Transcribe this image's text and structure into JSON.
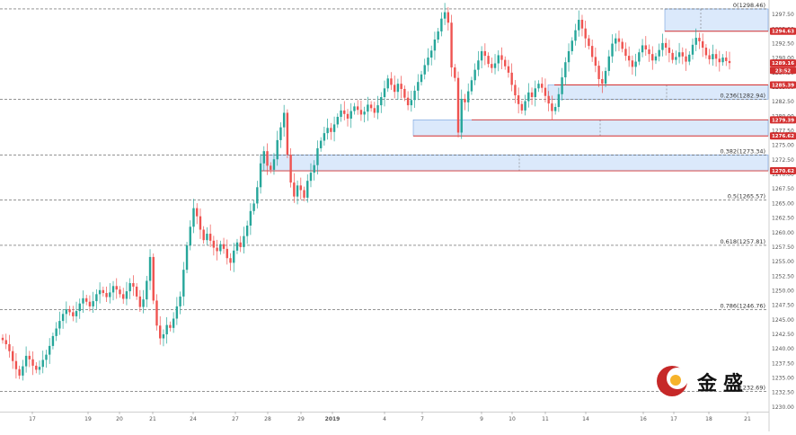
{
  "chart_data": {
    "type": "candlestick",
    "symbol": "XAUUSD",
    "x_ticks": [
      "17",
      "19",
      "20",
      "21",
      "24",
      "27",
      "28",
      "29",
      "2019",
      "4",
      "7",
      "9",
      "10",
      "11",
      "14",
      "16",
      "17",
      "18",
      "21"
    ],
    "y_ticks": [
      "1297.50",
      "1295.00",
      "1292.50",
      "1290.00",
      "1287.50",
      "1285.00",
      "1282.50",
      "1280.00",
      "1277.50",
      "1275.00",
      "1272.50",
      "1270.00",
      "1267.50",
      "1265.00",
      "1262.50",
      "1260.00",
      "1257.50",
      "1255.00",
      "1252.50",
      "1250.00",
      "1247.50",
      "1245.00",
      "1242.50",
      "1240.00",
      "1237.50",
      "1235.00",
      "1232.50",
      "1230.00"
    ],
    "ylim": [
      1229.2,
      1300.0
    ],
    "fib_levels": [
      {
        "ratio": 0,
        "price": 1298.46,
        "label": "0(1298.46)"
      },
      {
        "ratio": 0.236,
        "price": 1282.94,
        "label": "0.236(1282.94)"
      },
      {
        "ratio": 0.382,
        "price": 1273.34,
        "label": "0.382(1273.34)"
      },
      {
        "ratio": 0.5,
        "price": 1265.57,
        "label": "0.5(1265.57)"
      },
      {
        "ratio": 0.618,
        "price": 1257.81,
        "label": "0.618(1257.81)"
      },
      {
        "ratio": 0.786,
        "price": 1246.76,
        "label": "0.786(1246.76)"
      },
      {
        "ratio": 1,
        "price": 1232.69,
        "label": "1(1232.69)"
      }
    ],
    "zones": [
      {
        "top": 1298.46,
        "bottom": 1294.63
      },
      {
        "top": 1285.39,
        "bottom": 1282.94
      },
      {
        "top": 1279.39,
        "bottom": 1276.62
      },
      {
        "top": 1273.34,
        "bottom": 1270.62
      }
    ],
    "price_tags": [
      {
        "label": "1294.63",
        "price": 1294.63,
        "color": "#d32f2f"
      },
      {
        "label": "1289.16",
        "price": 1289.16,
        "color": "#d32f2f"
      },
      {
        "label": "23:52",
        "price": 1287.9,
        "color": "#d32f2f"
      },
      {
        "label": "1285.39",
        "price": 1285.39,
        "color": "#d32f2f"
      },
      {
        "label": "1279.39",
        "price": 1279.39,
        "color": "#d32f2f"
      },
      {
        "label": "1276.62",
        "price": 1276.62,
        "color": "#d32f2f"
      },
      {
        "label": "1270.62",
        "price": 1270.62,
        "color": "#d32f2f"
      }
    ],
    "candles_close": [
      1241.5,
      1240.8,
      1239.6,
      1237.9,
      1236.5,
      1235.4,
      1237.0,
      1238.8,
      1238.2,
      1237.1,
      1236.4,
      1236.9,
      1238.1,
      1239.0,
      1240.5,
      1242.2,
      1243.5,
      1244.8,
      1246.0,
      1246.8,
      1246.3,
      1245.6,
      1246.5,
      1247.8,
      1248.7,
      1248.1,
      1247.3,
      1248.2,
      1249.4,
      1250.1,
      1249.6,
      1248.9,
      1249.7,
      1250.8,
      1250.2,
      1249.4,
      1248.6,
      1249.9,
      1251.3,
      1250.7,
      1249.0,
      1247.2,
      1248.5,
      1251.7,
      1255.8,
      1248.3,
      1244.0,
      1241.8,
      1242.5,
      1244.1,
      1243.6,
      1245.2,
      1247.3,
      1249.0,
      1253.6,
      1257.8,
      1261.0,
      1264.2,
      1262.8,
      1260.5,
      1258.7,
      1259.8,
      1258.6,
      1257.4,
      1256.8,
      1258.0,
      1257.2,
      1255.6,
      1254.8,
      1256.9,
      1258.3,
      1257.5,
      1259.4,
      1261.2,
      1263.7,
      1265.0,
      1267.8,
      1271.9,
      1274.0,
      1271.5,
      1270.8,
      1272.6,
      1275.9,
      1278.1,
      1280.6,
      1273.4,
      1268.6,
      1266.2,
      1268.1,
      1267.3,
      1266.0,
      1268.9,
      1270.3,
      1271.6,
      1274.5,
      1275.8,
      1277.1,
      1278.0,
      1277.3,
      1278.6,
      1279.9,
      1281.0,
      1280.4,
      1279.6,
      1280.9,
      1281.7,
      1281.1,
      1280.3,
      1280.8,
      1282.0,
      1281.4,
      1280.6,
      1281.9,
      1283.3,
      1284.8,
      1286.5,
      1285.4,
      1284.2,
      1285.6,
      1284.7,
      1283.2,
      1281.9,
      1282.8,
      1284.4,
      1285.9,
      1287.2,
      1288.8,
      1290.1,
      1291.3,
      1293.2,
      1294.6,
      1296.8,
      1297.9,
      1296.1,
      1288.4,
      1286.6,
      1277.2,
      1283.0,
      1282.4,
      1284.3,
      1286.2,
      1288.0,
      1289.6,
      1291.2,
      1290.4,
      1289.0,
      1288.3,
      1289.1,
      1290.5,
      1289.7,
      1288.6,
      1287.5,
      1285.4,
      1283.6,
      1282.1,
      1281.0,
      1282.6,
      1284.1,
      1283.3,
      1284.8,
      1285.6,
      1284.9,
      1283.5,
      1282.2,
      1280.9,
      1281.6,
      1283.8,
      1286.7,
      1289.3,
      1291.2,
      1293.0,
      1294.8,
      1296.6,
      1295.1,
      1293.4,
      1292.1,
      1290.2,
      1288.7,
      1286.4,
      1285.6,
      1287.8,
      1290.3,
      1292.5,
      1293.4,
      1292.8,
      1291.6,
      1290.4,
      1289.6,
      1288.5,
      1289.4,
      1291.0,
      1292.2,
      1291.5,
      1290.7,
      1289.6,
      1290.3,
      1291.4,
      1292.6,
      1291.8,
      1290.9,
      1289.7,
      1290.2,
      1291.0,
      1290.3,
      1289.4,
      1290.6,
      1292.3,
      1293.5,
      1292.9,
      1291.8,
      1290.5,
      1289.8,
      1290.7,
      1289.9,
      1289.3,
      1290.1,
      1289.5,
      1289.16
    ]
  }
}
